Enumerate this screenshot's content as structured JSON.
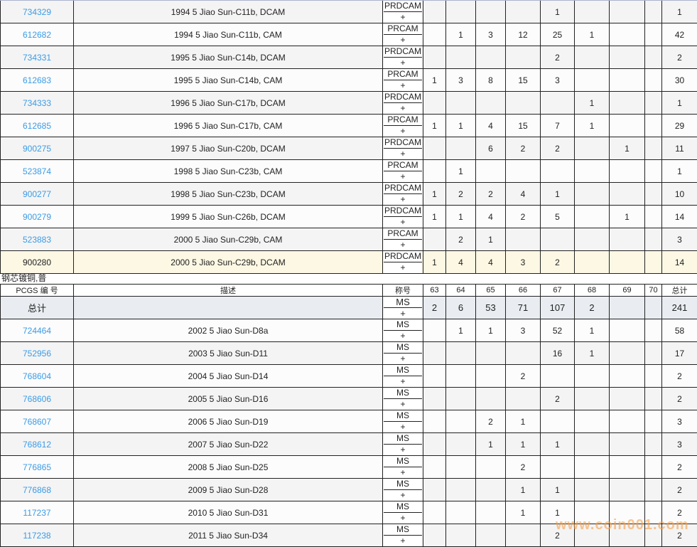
{
  "top_table": {
    "rows": [
      {
        "code": "734329",
        "desc": "1994 5 Jiao Sun-C11b, DCAM",
        "grade": "PRDCAM",
        "plus": "+",
        "counts": [
          "",
          "",
          "",
          "",
          "1",
          "",
          "",
          ""
        ],
        "total": "1"
      },
      {
        "code": "612682",
        "desc": "1994 5 Jiao Sun-C11b, CAM",
        "grade": "PRCAM",
        "plus": "+",
        "counts": [
          "",
          "1",
          "3",
          "12",
          "25",
          "1",
          "",
          ""
        ],
        "total": "42"
      },
      {
        "code": "734331",
        "desc": "1995 5 Jiao Sun-C14b, DCAM",
        "grade": "PRDCAM",
        "plus": "+",
        "counts": [
          "",
          "",
          "",
          "",
          "2",
          "",
          "",
          ""
        ],
        "total": "2"
      },
      {
        "code": "612683",
        "desc": "1995 5 Jiao Sun-C14b, CAM",
        "grade": "PRCAM",
        "plus": "+",
        "counts": [
          "1",
          "3",
          "8",
          "15",
          "3",
          "",
          "",
          ""
        ],
        "total": "30"
      },
      {
        "code": "734333",
        "desc": "1996 5 Jiao Sun-C17b, DCAM",
        "grade": "PRDCAM",
        "plus": "+",
        "counts": [
          "",
          "",
          "",
          "",
          "",
          "1",
          "",
          ""
        ],
        "total": "1"
      },
      {
        "code": "612685",
        "desc": "1996 5 Jiao Sun-C17b, CAM",
        "grade": "PRCAM",
        "plus": "+",
        "counts": [
          "1",
          "1",
          "4",
          "15",
          "7",
          "1",
          "",
          ""
        ],
        "total": "29"
      },
      {
        "code": "900275",
        "desc": "1997 5 Jiao Sun-C20b, DCAM",
        "grade": "PRDCAM",
        "plus": "+",
        "counts": [
          "",
          "",
          "6",
          "2",
          "2",
          "",
          "1",
          ""
        ],
        "total": "11"
      },
      {
        "code": "523874",
        "desc": "1998 5 Jiao Sun-C23b, CAM",
        "grade": "PRCAM",
        "plus": "+",
        "counts": [
          "",
          "1",
          "",
          "",
          "",
          "",
          "",
          ""
        ],
        "total": "1"
      },
      {
        "code": "900277",
        "desc": "1998 5 Jiao Sun-C23b, DCAM",
        "grade": "PRDCAM",
        "plus": "+",
        "counts": [
          "1",
          "2",
          "2",
          "4",
          "1",
          "",
          "",
          ""
        ],
        "total": "10"
      },
      {
        "code": "900279",
        "desc": "1999 5 Jiao Sun-C26b, DCAM",
        "grade": "PRDCAM",
        "plus": "+",
        "counts": [
          "1",
          "1",
          "4",
          "2",
          "5",
          "",
          "1",
          ""
        ],
        "total": "14"
      },
      {
        "code": "523883",
        "desc": "2000 5 Jiao Sun-C29b, CAM",
        "grade": "PRCAM",
        "plus": "+",
        "counts": [
          "",
          "2",
          "1",
          "",
          "",
          "",
          "",
          ""
        ],
        "total": "3"
      },
      {
        "code": "900280",
        "desc": "2000 5 Jiao Sun-C29b, DCAM",
        "grade": "PRDCAM",
        "plus": "+",
        "counts": [
          "1",
          "4",
          "4",
          "3",
          "2",
          "",
          "",
          ""
        ],
        "total": "14",
        "highlight": true
      }
    ]
  },
  "section_caption": "钢芯镀铜,普",
  "bottom_table": {
    "headers": [
      "PCGS 编 号",
      "描述",
      "称号",
      "63",
      "64",
      "65",
      "66",
      "67",
      "68",
      "69",
      "70",
      "总计"
    ],
    "total_row": {
      "code": "总计",
      "desc": "",
      "grade": "MS",
      "plus": "+",
      "counts": [
        "2",
        "6",
        "53",
        "71",
        "107",
        "2",
        "",
        ""
      ],
      "total": "241"
    },
    "rows": [
      {
        "code": "724464",
        "desc": "2002 5 Jiao Sun-D8a",
        "grade": "MS",
        "plus": "+",
        "counts": [
          "",
          "1",
          "1",
          "3",
          "52",
          "1",
          "",
          ""
        ],
        "total": "58"
      },
      {
        "code": "752956",
        "desc": "2003 5 Jiao Sun-D11",
        "grade": "MS",
        "plus": "+",
        "counts": [
          "",
          "",
          "",
          "",
          "16",
          "1",
          "",
          ""
        ],
        "total": "17"
      },
      {
        "code": "768604",
        "desc": "2004 5 Jiao Sun-D14",
        "grade": "MS",
        "plus": "+",
        "counts": [
          "",
          "",
          "",
          "2",
          "",
          "",
          "",
          ""
        ],
        "total": "2"
      },
      {
        "code": "768606",
        "desc": "2005 5 Jiao Sun-D16",
        "grade": "MS",
        "plus": "+",
        "counts": [
          "",
          "",
          "",
          "",
          "2",
          "",
          "",
          ""
        ],
        "total": "2"
      },
      {
        "code": "768607",
        "desc": "2006 5 Jiao Sun-D19",
        "grade": "MS",
        "plus": "+",
        "counts": [
          "",
          "",
          "2",
          "1",
          "",
          "",
          "",
          ""
        ],
        "total": "3"
      },
      {
        "code": "768612",
        "desc": "2007 5 Jiao Sun-D22",
        "grade": "MS",
        "plus": "+",
        "counts": [
          "",
          "",
          "1",
          "1",
          "1",
          "",
          "",
          ""
        ],
        "total": "3"
      },
      {
        "code": "776865",
        "desc": "2008 5 Jiao Sun-D25",
        "grade": "MS",
        "plus": "+",
        "counts": [
          "",
          "",
          "",
          "2",
          "",
          "",
          "",
          ""
        ],
        "total": "2"
      },
      {
        "code": "776868",
        "desc": "2009 5 Jiao Sun-D28",
        "grade": "MS",
        "plus": "+",
        "counts": [
          "",
          "",
          "",
          "1",
          "1",
          "",
          "",
          ""
        ],
        "total": "2"
      },
      {
        "code": "117237",
        "desc": "2010 5 Jiao Sun-D31",
        "grade": "MS",
        "plus": "+",
        "counts": [
          "",
          "",
          "",
          "1",
          "1",
          "",
          "",
          ""
        ],
        "total": "2"
      },
      {
        "code": "117238",
        "desc": "2011 5 Jiao Sun-D34",
        "grade": "MS",
        "plus": "+",
        "counts": [
          "",
          "",
          "",
          "",
          "2",
          "",
          "",
          ""
        ],
        "total": "2"
      }
    ]
  },
  "watermark": "www.coin001.com",
  "colors": {
    "link": "#3b9be6",
    "highlight": "#fdf8e4",
    "total_row": "#e9edf1"
  }
}
